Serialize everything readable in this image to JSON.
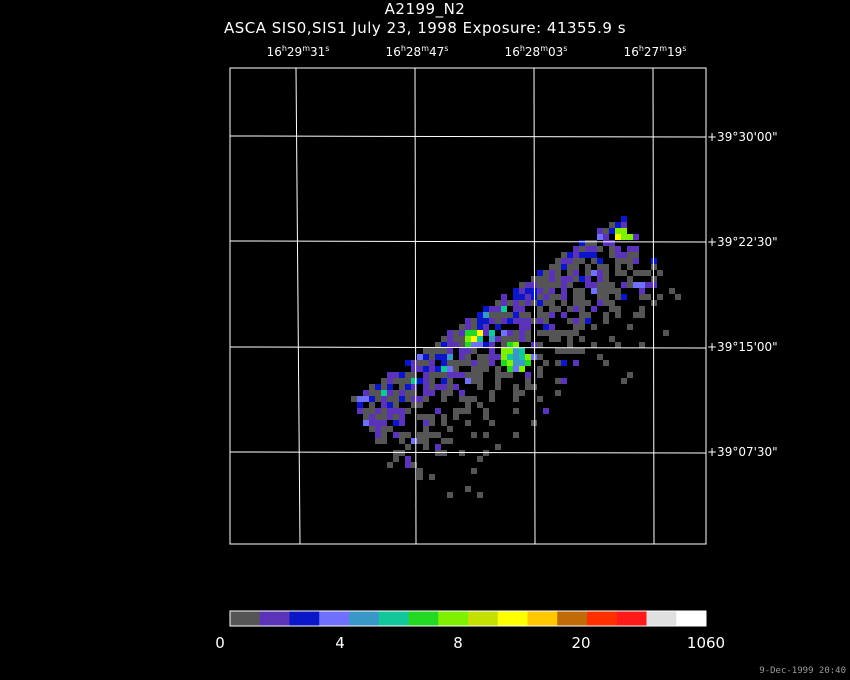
{
  "title": "A2199_N2",
  "subtitle": "ASCA SIS0,SIS1 July 23, 1998 Exposure: 41355.9 s",
  "ra_ticks": [
    {
      "h": "16",
      "m": "29",
      "s": "31"
    },
    {
      "h": "16",
      "m": "28",
      "s": "47"
    },
    {
      "h": "16",
      "m": "28",
      "s": "03"
    },
    {
      "h": "16",
      "m": "27",
      "s": "19"
    }
  ],
  "dec_ticks": [
    "+39°30'00\"",
    "+39°22'30\"",
    "+39°15'00\"",
    "+39°07'30\""
  ],
  "colorbar": {
    "colors": [
      "#555555",
      "#5a33b8",
      "#0a16c8",
      "#7070ff",
      "#3a98c8",
      "#12c89a",
      "#22d822",
      "#7ef000",
      "#c4e000",
      "#ffff00",
      "#ffc800",
      "#c06a08",
      "#ff3000",
      "#ff1a1a",
      "#e0e0e0",
      "#ffffff"
    ],
    "labels": [
      "0",
      "4",
      "8",
      "20",
      "1060"
    ]
  },
  "timestamp": "9-Dec-1999 20:40"
}
